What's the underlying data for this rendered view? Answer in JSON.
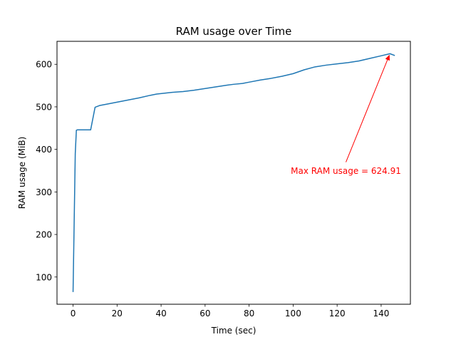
{
  "chart_data": {
    "type": "line",
    "title": "RAM usage over Time",
    "xlabel": "Time (sec)",
    "ylabel": "RAM usage (MiB)",
    "xlim": [
      -7.3,
      153.3
    ],
    "ylim": [
      36,
      654
    ],
    "xticks": [
      0,
      20,
      40,
      60,
      80,
      100,
      120,
      140
    ],
    "yticks": [
      100,
      200,
      300,
      400,
      500,
      600
    ],
    "grid": false,
    "series": [
      {
        "color": "#1f77b4",
        "x": [
          0,
          1,
          1.5,
          2,
          8,
          10,
          12,
          15,
          20,
          25,
          30,
          35,
          38,
          45,
          50,
          55,
          60,
          65,
          70,
          73,
          77,
          80,
          85,
          90,
          95,
          100,
          105,
          110,
          115,
          120,
          125,
          130,
          135,
          140,
          144,
          146
        ],
        "y": [
          66,
          390,
          445,
          446,
          446,
          499,
          503,
          506,
          511,
          516,
          521,
          527,
          530,
          534,
          536,
          539,
          543,
          547,
          551,
          553,
          555,
          558,
          563,
          567,
          572,
          578,
          587,
          594,
          598,
          601,
          604,
          608,
          614,
          620,
          624.91,
          621
        ]
      }
    ],
    "annotation": {
      "text": "Max RAM usage = 624.91",
      "point": [
        144,
        624.91
      ],
      "text_anchor_point": [
        124,
        350
      ],
      "color": "#ff0000"
    }
  }
}
